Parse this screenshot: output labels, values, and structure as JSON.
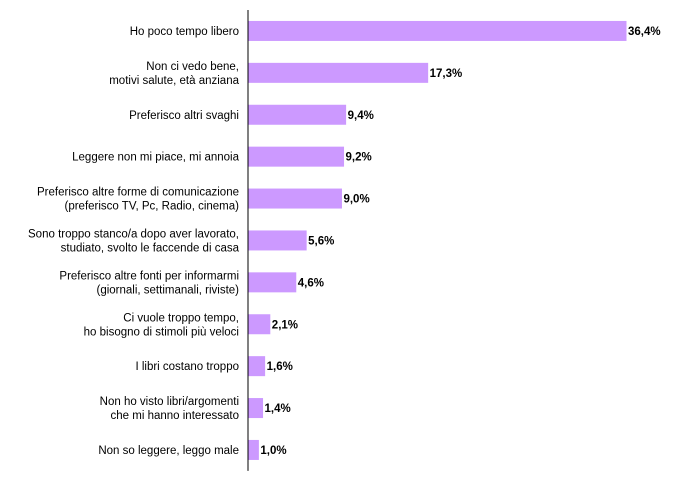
{
  "chart_data": {
    "type": "bar",
    "orientation": "horizontal",
    "bar_color": "#cc99ff",
    "categories": [
      [
        "Ho poco tempo libero"
      ],
      [
        "Non ci vedo bene,",
        "motivi salute, età anziana"
      ],
      [
        "Preferisco altri svaghi"
      ],
      [
        "Leggere non mi piace, mi annoia"
      ],
      [
        "Preferisco altre forme di comunicazione",
        "(preferisco TV, Pc, Radio, cinema)"
      ],
      [
        "Sono troppo stanco/a dopo aver lavorato,",
        "studiato, svolto le faccende di casa"
      ],
      [
        "Preferisco altre fonti per informarmi",
        "(giornali, settimanali, riviste)"
      ],
      [
        "Ci vuole troppo tempo,",
        "ho bisogno di stimoli più veloci"
      ],
      [
        "I libri costano troppo"
      ],
      [
        "Non ho visto libri/argomenti",
        "che mi hanno interessato"
      ],
      [
        "Non so leggere, leggo male"
      ]
    ],
    "values": [
      36.4,
      17.3,
      9.4,
      9.2,
      9.0,
      5.6,
      4.6,
      2.1,
      1.6,
      1.4,
      1.0
    ],
    "value_labels": [
      "36,4%",
      "17,3%",
      "9,4%",
      "9,2%",
      "9,0%",
      "5,6%",
      "4,6%",
      "2,1%",
      "1,6%",
      "1,4%",
      "1,0%"
    ],
    "xlim": [
      0,
      36.4
    ],
    "grid": false,
    "legend": "none"
  }
}
